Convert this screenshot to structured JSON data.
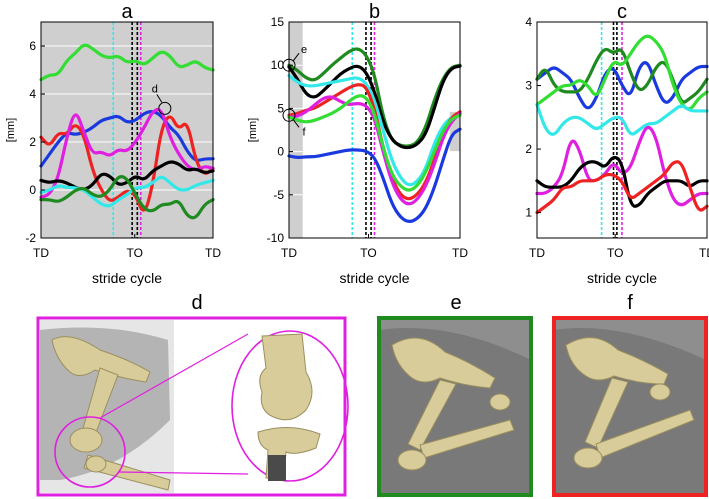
{
  "chart_data": [
    {
      "type": "line",
      "panel_label": "a",
      "ylabel": "[mm]",
      "xlabel": "stride cycle",
      "xtick_labels": [
        "TD",
        "TO",
        "TD"
      ],
      "yticks": [
        -2,
        0,
        2,
        4,
        6
      ],
      "ylim": [
        -2,
        7
      ],
      "xlim": [
        0,
        100
      ],
      "shaded_x": [
        0,
        100
      ],
      "to_lines": {
        "cyan": 42,
        "black1": 53,
        "black2": 56,
        "magenta": 58
      },
      "annotation": {
        "text": "d",
        "x": 72,
        "y": 3.4
      },
      "series": [
        {
          "color": "#33dd33",
          "x": [
            0,
            5,
            10,
            15,
            20,
            25,
            30,
            35,
            40,
            45,
            50,
            55,
            60,
            65,
            70,
            75,
            80,
            85,
            90,
            95,
            100
          ],
          "values": [
            4.6,
            4.8,
            4.8,
            5.4,
            5.7,
            6.1,
            5.9,
            5.6,
            5.5,
            5.6,
            5.3,
            5.4,
            5.2,
            5.5,
            5.8,
            5.6,
            5.1,
            5.2,
            5.4,
            5.1,
            5.0
          ]
        },
        {
          "color": "#1a3adf",
          "x": [
            0,
            5,
            10,
            15,
            20,
            25,
            30,
            35,
            40,
            45,
            50,
            55,
            60,
            65,
            70,
            75,
            80,
            85,
            90,
            95,
            100
          ],
          "values": [
            1.0,
            1.5,
            2.0,
            2.4,
            2.3,
            2.4,
            2.6,
            2.9,
            3.0,
            3.1,
            2.8,
            2.9,
            3.2,
            3.3,
            3.1,
            2.6,
            2.3,
            1.6,
            1.2,
            1.3,
            1.3
          ]
        },
        {
          "color": "#ee2222",
          "x": [
            0,
            5,
            10,
            15,
            20,
            25,
            30,
            35,
            40,
            45,
            50,
            55,
            60,
            65,
            70,
            75,
            80,
            85,
            90,
            95,
            100
          ],
          "values": [
            2.2,
            1.8,
            2.4,
            2.3,
            2.8,
            2.3,
            0.8,
            0.0,
            -0.5,
            -0.3,
            0.0,
            -0.2,
            -1.1,
            0.2,
            2.6,
            3.2,
            2.5,
            2.9,
            1.2,
            0.6,
            0.9
          ]
        },
        {
          "color": "#e020e0",
          "x": [
            0,
            5,
            10,
            15,
            20,
            25,
            30,
            35,
            40,
            45,
            50,
            55,
            60,
            65,
            70,
            75,
            80,
            85,
            90,
            95,
            100
          ],
          "values": [
            -0.3,
            -0.2,
            0.5,
            2.2,
            3.4,
            2.4,
            1.5,
            1.6,
            1.4,
            1.7,
            1.6,
            2.0,
            2.6,
            3.3,
            3.4,
            2.2,
            1.5,
            1.0,
            0.8,
            1.0,
            0.9
          ]
        },
        {
          "color": "#000000",
          "x": [
            0,
            5,
            10,
            15,
            20,
            25,
            30,
            35,
            40,
            45,
            50,
            55,
            60,
            65,
            70,
            75,
            80,
            85,
            90,
            95,
            100
          ],
          "values": [
            0.4,
            0.3,
            0.4,
            0.3,
            0.1,
            0.0,
            0.2,
            0.7,
            0.6,
            0.2,
            0.3,
            0.6,
            0.4,
            0.8,
            1.0,
            1.2,
            1.1,
            0.8,
            0.9,
            0.7,
            0.8
          ]
        },
        {
          "color": "#33e8e8",
          "x": [
            0,
            5,
            10,
            15,
            20,
            25,
            30,
            35,
            40,
            45,
            50,
            55,
            60,
            65,
            70,
            75,
            80,
            85,
            90,
            95,
            100
          ],
          "values": [
            -0.1,
            0.0,
            0.2,
            0.1,
            0.1,
            0.0,
            -0.3,
            -0.6,
            -0.7,
            -0.4,
            -0.2,
            0.1,
            0.1,
            0.3,
            0.6,
            0.3,
            0.0,
            0.0,
            0.2,
            0.3,
            0.4
          ]
        },
        {
          "color": "#1f8a1f",
          "x": [
            0,
            5,
            10,
            15,
            20,
            25,
            30,
            35,
            40,
            45,
            50,
            55,
            60,
            65,
            70,
            75,
            80,
            85,
            90,
            95,
            100
          ],
          "values": [
            -0.4,
            -0.4,
            -0.5,
            -0.3,
            0.0,
            0.1,
            -0.2,
            -0.3,
            0.0,
            0.6,
            0.5,
            -0.2,
            -0.8,
            -0.9,
            -0.6,
            -0.6,
            -0.4,
            -1.1,
            -1.2,
            -0.6,
            -0.4
          ]
        }
      ]
    },
    {
      "type": "line",
      "panel_label": "b",
      "ylabel": "[mm]",
      "xlabel": "stride cycle",
      "xtick_labels": [
        "TD",
        "TO",
        "TD"
      ],
      "yticks": [
        -10,
        -5,
        0,
        5,
        10,
        15
      ],
      "ylim": [
        -10,
        15
      ],
      "xlim": [
        0,
        100
      ],
      "shaded_x": [
        0,
        8
      ],
      "shaded_x2": [
        94,
        100
      ],
      "to_lines": {
        "cyan": 37,
        "black1": 45,
        "black2": 48,
        "magenta": 50
      },
      "annotations": [
        {
          "text": "e",
          "x": 0,
          "y": 10
        },
        {
          "text": "f",
          "x": 0,
          "y": 4.2
        }
      ],
      "series": [
        {
          "color": "#1f8a1f",
          "x": [
            0,
            5,
            10,
            15,
            20,
            25,
            30,
            35,
            40,
            45,
            50,
            55,
            60,
            65,
            70,
            75,
            80,
            85,
            90,
            95,
            100
          ],
          "values": [
            10.0,
            9.4,
            8.5,
            8.2,
            9.0,
            10.0,
            10.8,
            11.6,
            12.0,
            11.3,
            9.0,
            4.0,
            1.3,
            0.7,
            0.6,
            1.0,
            2.8,
            6.0,
            8.5,
            9.8,
            10.0
          ]
        },
        {
          "color": "#000000",
          "x": [
            0,
            5,
            10,
            15,
            20,
            25,
            30,
            35,
            40,
            45,
            50,
            55,
            60,
            65,
            70,
            75,
            80,
            85,
            90,
            95,
            100
          ],
          "values": [
            9.8,
            8.4,
            6.6,
            6.2,
            7.0,
            8.0,
            9.0,
            9.6,
            10.0,
            9.3,
            7.0,
            3.4,
            1.4,
            0.6,
            0.4,
            0.8,
            2.0,
            5.0,
            8.2,
            9.7,
            9.9
          ]
        },
        {
          "color": "#33e8e8",
          "x": [
            0,
            5,
            10,
            15,
            20,
            25,
            30,
            35,
            40,
            45,
            50,
            55,
            60,
            65,
            70,
            75,
            80,
            85,
            90,
            95,
            100
          ],
          "values": [
            8.8,
            8.0,
            7.6,
            7.6,
            7.8,
            8.0,
            8.2,
            8.4,
            8.6,
            8.0,
            6.0,
            2.5,
            -1.0,
            -3.0,
            -4.0,
            -3.5,
            -2.0,
            1.0,
            3.0,
            4.0,
            4.4
          ]
        },
        {
          "color": "#ee2222",
          "x": [
            0,
            5,
            10,
            15,
            20,
            25,
            30,
            35,
            40,
            45,
            50,
            55,
            60,
            65,
            70,
            75,
            80,
            85,
            90,
            95,
            100
          ],
          "values": [
            4.2,
            4.4,
            4.8,
            5.0,
            5.6,
            6.2,
            6.8,
            7.4,
            7.8,
            7.6,
            5.0,
            0.5,
            -3.0,
            -5.0,
            -5.6,
            -5.0,
            -3.6,
            -1.0,
            2.0,
            4.0,
            4.6
          ]
        },
        {
          "color": "#e020e0",
          "x": [
            0,
            5,
            10,
            15,
            20,
            25,
            30,
            35,
            40,
            45,
            50,
            55,
            60,
            65,
            70,
            75,
            80,
            85,
            90,
            95,
            100
          ],
          "values": [
            4.0,
            4.1,
            4.6,
            5.4,
            6.2,
            6.4,
            5.8,
            5.4,
            5.6,
            5.4,
            4.0,
            0.0,
            -3.5,
            -5.5,
            -6.2,
            -5.6,
            -4.0,
            -1.5,
            1.6,
            3.5,
            4.4
          ]
        },
        {
          "color": "#33dd33",
          "x": [
            0,
            5,
            10,
            15,
            20,
            25,
            30,
            35,
            40,
            45,
            50,
            55,
            60,
            65,
            70,
            75,
            80,
            85,
            90,
            95,
            100
          ],
          "values": [
            4.0,
            3.6,
            3.4,
            3.6,
            4.0,
            4.4,
            5.0,
            5.8,
            6.5,
            6.4,
            4.5,
            0.5,
            -2.6,
            -4.0,
            -4.6,
            -4.0,
            -2.4,
            0.0,
            2.4,
            3.8,
            4.2
          ]
        },
        {
          "color": "#1a3adf",
          "x": [
            0,
            5,
            10,
            15,
            20,
            25,
            30,
            35,
            40,
            45,
            50,
            55,
            60,
            65,
            70,
            75,
            80,
            85,
            90,
            95,
            100
          ],
          "values": [
            -0.5,
            -0.7,
            -0.6,
            -0.6,
            -0.4,
            -0.2,
            0.0,
            0.2,
            0.2,
            0.1,
            -0.6,
            -3.0,
            -6.0,
            -7.6,
            -8.2,
            -7.8,
            -6.6,
            -4.2,
            -1.0,
            2.0,
            2.6
          ]
        }
      ]
    },
    {
      "type": "line",
      "panel_label": "c",
      "ylabel": "",
      "xlabel": "stride cycle",
      "xtick_labels": [
        "TD",
        "TO",
        "TD"
      ],
      "yticks": [
        1,
        2,
        3,
        4
      ],
      "ylim": [
        0.6,
        4.0
      ],
      "xlim": [
        0,
        100
      ],
      "to_lines": {
        "cyan": 38,
        "black1": 45,
        "black2": 47,
        "magenta": 50
      },
      "series": [
        {
          "color": "#1a3adf",
          "x": [
            0,
            5,
            10,
            15,
            20,
            25,
            30,
            35,
            40,
            45,
            50,
            55,
            60,
            65,
            70,
            75,
            80,
            85,
            90,
            95,
            100
          ],
          "values": [
            3.1,
            3.2,
            3.3,
            3.2,
            3.1,
            2.8,
            2.6,
            2.8,
            3.2,
            3.3,
            3.0,
            2.8,
            3.3,
            3.4,
            3.0,
            2.7,
            2.8,
            3.1,
            3.2,
            3.3,
            3.3
          ]
        },
        {
          "color": "#1f8a1f",
          "x": [
            0,
            5,
            10,
            15,
            20,
            25,
            30,
            35,
            40,
            45,
            50,
            55,
            60,
            65,
            70,
            75,
            80,
            85,
            90,
            95,
            100
          ],
          "values": [
            3.1,
            3.3,
            3.0,
            2.9,
            2.9,
            2.9,
            3.1,
            3.4,
            3.6,
            3.5,
            3.6,
            3.2,
            2.9,
            3.0,
            3.3,
            3.4,
            3.1,
            2.7,
            2.8,
            2.9,
            3.1
          ]
        },
        {
          "color": "#33dd33",
          "x": [
            0,
            5,
            10,
            15,
            20,
            25,
            30,
            35,
            40,
            45,
            50,
            55,
            60,
            65,
            70,
            75,
            80,
            85,
            90,
            95,
            100
          ],
          "values": [
            2.7,
            2.8,
            2.9,
            3.0,
            3.0,
            3.1,
            3.0,
            2.8,
            3.1,
            3.4,
            3.3,
            3.5,
            3.7,
            3.8,
            3.7,
            3.5,
            3.0,
            2.7,
            2.6,
            2.8,
            2.9
          ]
        },
        {
          "color": "#33e8e8",
          "x": [
            0,
            5,
            10,
            15,
            20,
            25,
            30,
            35,
            40,
            45,
            50,
            55,
            60,
            65,
            70,
            75,
            80,
            85,
            90,
            95,
            100
          ],
          "values": [
            2.7,
            2.3,
            2.2,
            2.4,
            2.5,
            2.5,
            2.4,
            2.3,
            2.4,
            2.5,
            2.5,
            2.2,
            2.3,
            2.4,
            2.4,
            2.5,
            2.6,
            2.7,
            2.6,
            2.6,
            2.6
          ]
        },
        {
          "color": "#e020e0",
          "x": [
            0,
            5,
            10,
            15,
            20,
            25,
            30,
            35,
            40,
            45,
            50,
            55,
            60,
            65,
            70,
            75,
            80,
            85,
            90,
            95,
            100
          ],
          "values": [
            1.3,
            1.3,
            1.4,
            1.6,
            2.2,
            2.0,
            1.5,
            1.5,
            1.6,
            1.8,
            1.6,
            1.7,
            2.1,
            2.4,
            2.2,
            1.6,
            1.2,
            1.1,
            1.2,
            1.3,
            1.3
          ]
        },
        {
          "color": "#000000",
          "x": [
            0,
            5,
            10,
            15,
            20,
            25,
            30,
            35,
            40,
            45,
            50,
            55,
            60,
            65,
            70,
            75,
            80,
            85,
            90,
            95,
            100
          ],
          "values": [
            1.5,
            1.4,
            1.4,
            1.4,
            1.5,
            1.7,
            1.8,
            1.8,
            1.7,
            1.9,
            1.8,
            1.1,
            1.1,
            1.3,
            1.4,
            1.5,
            1.5,
            1.5,
            1.4,
            1.5,
            1.5
          ]
        },
        {
          "color": "#ee2222",
          "x": [
            0,
            5,
            10,
            15,
            20,
            25,
            30,
            35,
            40,
            45,
            50,
            55,
            60,
            65,
            70,
            75,
            80,
            85,
            90,
            95,
            100
          ],
          "values": [
            1.0,
            1.1,
            1.2,
            1.4,
            1.4,
            1.5,
            1.5,
            1.5,
            1.6,
            1.6,
            1.5,
            1.2,
            1.3,
            1.4,
            1.5,
            1.6,
            1.8,
            1.8,
            1.4,
            1.0,
            1.1
          ]
        }
      ]
    }
  ],
  "bottom_panels": [
    {
      "label": "d",
      "border": "#e020e0"
    },
    {
      "label": "e",
      "border": "#1f8a1f"
    },
    {
      "label": "f",
      "border": "#ee2222"
    }
  ],
  "colors": {
    "shade": "#cfcfcf",
    "bone": "#d8cc9a",
    "bone_dark": "#9b8f5f",
    "xray": "#7a7a7a"
  }
}
